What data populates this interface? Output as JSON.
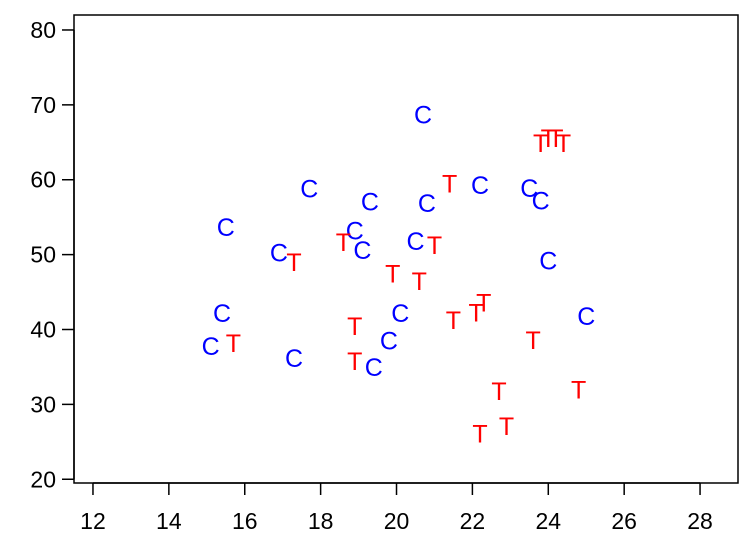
{
  "chart_data": {
    "type": "scatter",
    "title": "",
    "xlabel": "",
    "ylabel": "",
    "xlim": [
      11.5,
      29.0
    ],
    "ylim": [
      19.5,
      82.0
    ],
    "x_ticks": [
      12,
      14,
      16,
      18,
      20,
      22,
      24,
      26,
      28
    ],
    "y_ticks": [
      20,
      30,
      40,
      50,
      60,
      70,
      80
    ],
    "grid": false,
    "legend": "none",
    "series": [
      {
        "marker": "C",
        "color": "#0000ff",
        "points": [
          {
            "x": 15.5,
            "y": 53.7
          },
          {
            "x": 16.9,
            "y": 50.3
          },
          {
            "x": 17.7,
            "y": 58.8
          },
          {
            "x": 15.4,
            "y": 42.2
          },
          {
            "x": 15.1,
            "y": 37.8
          },
          {
            "x": 17.3,
            "y": 36.2
          },
          {
            "x": 19.3,
            "y": 57.1
          },
          {
            "x": 18.9,
            "y": 53.2
          },
          {
            "x": 19.1,
            "y": 50.6
          },
          {
            "x": 20.1,
            "y": 42.2
          },
          {
            "x": 19.8,
            "y": 38.5
          },
          {
            "x": 19.4,
            "y": 35.0
          },
          {
            "x": 20.7,
            "y": 68.7
          },
          {
            "x": 20.8,
            "y": 56.9
          },
          {
            "x": 20.5,
            "y": 51.8
          },
          {
            "x": 22.2,
            "y": 59.3
          },
          {
            "x": 23.5,
            "y": 58.9
          },
          {
            "x": 23.8,
            "y": 57.2
          },
          {
            "x": 24.0,
            "y": 49.2
          },
          {
            "x": 25.0,
            "y": 41.8
          }
        ]
      },
      {
        "marker": "T",
        "color": "#ff0000",
        "points": [
          {
            "x": 15.7,
            "y": 38.2
          },
          {
            "x": 17.3,
            "y": 49.0
          },
          {
            "x": 18.6,
            "y": 51.7
          },
          {
            "x": 18.9,
            "y": 40.5
          },
          {
            "x": 18.9,
            "y": 35.8
          },
          {
            "x": 19.9,
            "y": 47.5
          },
          {
            "x": 20.6,
            "y": 46.5
          },
          {
            "x": 21.0,
            "y": 51.3
          },
          {
            "x": 21.4,
            "y": 59.5
          },
          {
            "x": 21.5,
            "y": 41.3
          },
          {
            "x": 22.1,
            "y": 42.3
          },
          {
            "x": 22.3,
            "y": 43.6
          },
          {
            "x": 22.7,
            "y": 31.8
          },
          {
            "x": 22.2,
            "y": 26.1
          },
          {
            "x": 22.9,
            "y": 27.1
          },
          {
            "x": 23.6,
            "y": 38.6
          },
          {
            "x": 23.8,
            "y": 64.9
          },
          {
            "x": 24.0,
            "y": 65.6
          },
          {
            "x": 24.2,
            "y": 65.6
          },
          {
            "x": 24.4,
            "y": 64.9
          },
          {
            "x": 24.8,
            "y": 32.0
          }
        ]
      }
    ]
  }
}
